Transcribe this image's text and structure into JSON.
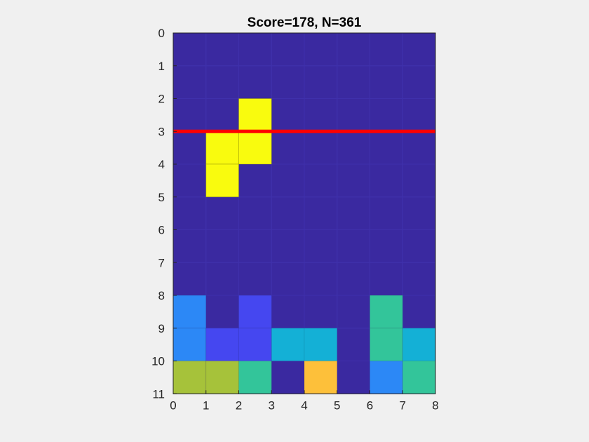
{
  "game": {
    "title": "Score=178, N=361",
    "score": 178,
    "pieces_count": 361,
    "board": {
      "cols": 8,
      "rows": 11,
      "background_color": "#3a29a0",
      "grid_line_color": "#3f30ab"
    },
    "red_line": {
      "y": 3,
      "color": "#ff0000"
    },
    "falling_piece": {
      "color": "#f9fb0e",
      "cells": [
        [
          2,
          2
        ],
        [
          1,
          3
        ],
        [
          2,
          3
        ],
        [
          1,
          4
        ]
      ]
    },
    "locked_cells": [
      {
        "col": 0,
        "row": 8,
        "color": "#2c88f6"
      },
      {
        "col": 2,
        "row": 8,
        "color": "#4547f0"
      },
      {
        "col": 6,
        "row": 8,
        "color": "#33c59a"
      },
      {
        "col": 0,
        "row": 9,
        "color": "#2c88f6"
      },
      {
        "col": 1,
        "row": 9,
        "color": "#4547f0"
      },
      {
        "col": 2,
        "row": 9,
        "color": "#4547f0"
      },
      {
        "col": 3,
        "row": 9,
        "color": "#14b0d6"
      },
      {
        "col": 4,
        "row": 9,
        "color": "#14b0d6"
      },
      {
        "col": 6,
        "row": 9,
        "color": "#33c59a"
      },
      {
        "col": 7,
        "row": 9,
        "color": "#14b0d6"
      },
      {
        "col": 0,
        "row": 10,
        "color": "#a6c23a"
      },
      {
        "col": 1,
        "row": 10,
        "color": "#a6c23a"
      },
      {
        "col": 2,
        "row": 10,
        "color": "#33c59a"
      },
      {
        "col": 4,
        "row": 10,
        "color": "#fdc03a"
      },
      {
        "col": 6,
        "row": 10,
        "color": "#2c88f6"
      },
      {
        "col": 7,
        "row": 10,
        "color": "#33c59a"
      }
    ],
    "x_ticks": [
      "0",
      "1",
      "2",
      "3",
      "4",
      "5",
      "6",
      "7",
      "8"
    ],
    "y_ticks": [
      "0",
      "1",
      "2",
      "3",
      "4",
      "5",
      "6",
      "7",
      "8",
      "9",
      "10",
      "11"
    ]
  }
}
